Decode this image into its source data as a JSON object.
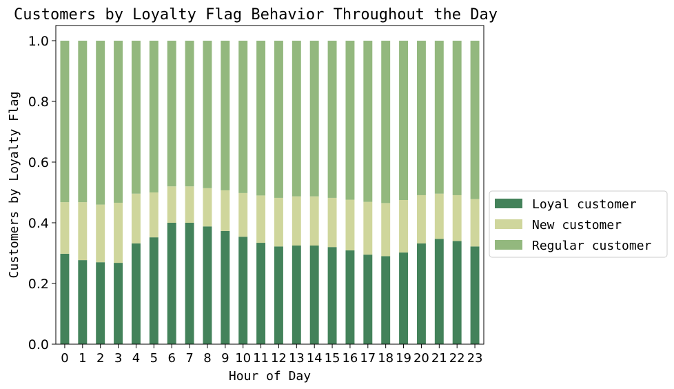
{
  "chart_data": {
    "type": "bar",
    "stacked": true,
    "title": "Customers by Loyalty Flag Behavior Throughout the Day",
    "xlabel": "Hour of Day",
    "ylabel": "Customers by Loyalty Flag",
    "ylim": [
      0,
      1.05
    ],
    "yticks": [
      "0.0",
      "0.2",
      "0.4",
      "0.6",
      "0.8",
      "1.0"
    ],
    "grid": false,
    "legend_position": "center-right, outside plot",
    "categories": [
      "0",
      "1",
      "2",
      "3",
      "4",
      "5",
      "6",
      "7",
      "8",
      "9",
      "10",
      "11",
      "12",
      "13",
      "14",
      "15",
      "16",
      "17",
      "18",
      "19",
      "20",
      "21",
      "22",
      "23"
    ],
    "series": [
      {
        "name": "Loyal customer",
        "color": "#43825a",
        "values": [
          0.298,
          0.277,
          0.27,
          0.268,
          0.332,
          0.352,
          0.4,
          0.4,
          0.388,
          0.373,
          0.354,
          0.334,
          0.322,
          0.325,
          0.325,
          0.32,
          0.309,
          0.295,
          0.29,
          0.302,
          0.332,
          0.347,
          0.34,
          0.322
        ]
      },
      {
        "name": "New customer",
        "color": "#cfd69c",
        "values": [
          0.17,
          0.191,
          0.19,
          0.198,
          0.164,
          0.148,
          0.12,
          0.12,
          0.126,
          0.134,
          0.144,
          0.156,
          0.16,
          0.162,
          0.162,
          0.162,
          0.167,
          0.174,
          0.175,
          0.173,
          0.159,
          0.149,
          0.151,
          0.156
        ]
      },
      {
        "name": "Regular customer",
        "color": "#93b87e",
        "values": [
          0.532,
          0.532,
          0.54,
          0.534,
          0.504,
          0.5,
          0.48,
          0.48,
          0.486,
          0.493,
          0.502,
          0.51,
          0.518,
          0.513,
          0.513,
          0.518,
          0.524,
          0.531,
          0.535,
          0.525,
          0.509,
          0.504,
          0.509,
          0.522
        ]
      }
    ]
  }
}
